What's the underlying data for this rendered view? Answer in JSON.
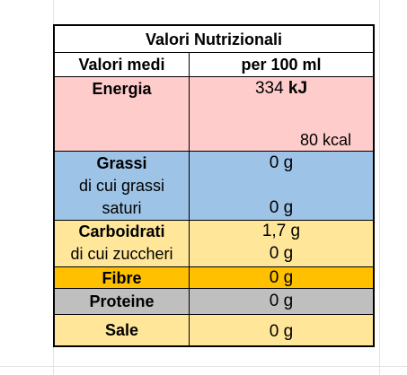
{
  "title": "Valori Nutrizionali",
  "header": {
    "label": "Valori medi",
    "value": "per 100 ml"
  },
  "energia": {
    "label": "Energia",
    "kj_value": "334",
    "kj_unit": "kJ",
    "kcal": "80 kcal"
  },
  "grassi": {
    "label": "Grassi",
    "sub_line1": "di cui grassi",
    "sub_line2": "saturi",
    "value": "0 g",
    "sub_value": "0 g"
  },
  "carboidrati": {
    "label": "Carboidrati",
    "sub_label": "di cui zuccheri",
    "value": "1,7 g",
    "sub_value": "0 g"
  },
  "fibre": {
    "label": "Fibre",
    "value": "0 g"
  },
  "proteine": {
    "label": "Proteine",
    "value": "0 g"
  },
  "sale": {
    "label": "Sale",
    "value": "0 g"
  },
  "colors": {
    "energia": "#ffcccc",
    "grassi": "#9dc3e6",
    "carboidrati": "#ffe699",
    "fibre": "#ffc000",
    "proteine": "#bfbfbf",
    "sale": "#ffe699"
  }
}
